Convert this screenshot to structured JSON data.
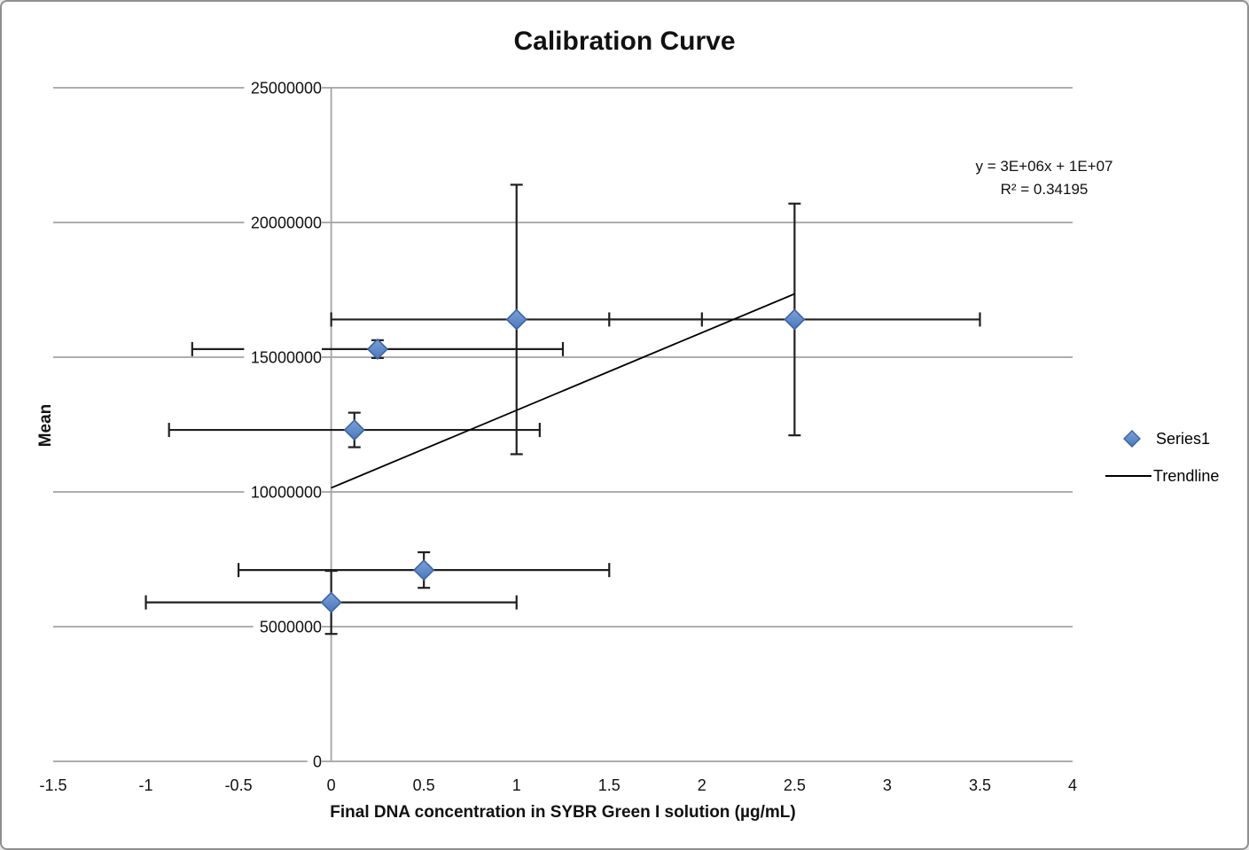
{
  "chart_data": {
    "type": "scatter",
    "title": "Calibration Curve",
    "xlabel": "Final DNA concentration in SYBR Green I solution (µg/mL)",
    "ylabel": "Mean",
    "xlim": [
      -1.5,
      4
    ],
    "ylim": [
      0,
      25000000
    ],
    "x_ticks": [
      -1.5,
      -1,
      -0.5,
      0,
      0.5,
      1,
      1.5,
      2,
      2.5,
      3,
      3.5,
      4
    ],
    "x_tick_labels": [
      "-1.5",
      "-1",
      "-0.5",
      "0",
      "0.5",
      "1",
      "1.5",
      "2",
      "2.5",
      "3",
      "3.5",
      "4"
    ],
    "y_ticks": [
      0,
      5000000,
      10000000,
      15000000,
      20000000,
      25000000
    ],
    "y_tick_labels": [
      "0",
      "5000000",
      "10000000",
      "15000000",
      "20000000",
      "25000000"
    ],
    "grid": "horizontal-major",
    "series": [
      {
        "name": "Series1",
        "type": "scatter",
        "marker": "diamond",
        "points": [
          {
            "x": 0,
            "y": 5900000,
            "x_err": 1,
            "y_err": 1170000
          },
          {
            "x": 0.125,
            "y": 12300000,
            "x_err": 1,
            "y_err": 640000
          },
          {
            "x": 0.25,
            "y": 15300000,
            "x_err": 1,
            "y_err": 330000
          },
          {
            "x": 0.5,
            "y": 7100000,
            "x_err": 1,
            "y_err": 660000
          },
          {
            "x": 1,
            "y": 16400000,
            "x_err": 1,
            "y_err": 5000000
          },
          {
            "x": 2.5,
            "y": 16400000,
            "x_err": 1,
            "y_err": 4300000
          }
        ]
      },
      {
        "name": "Trendline",
        "type": "line",
        "points": [
          {
            "x": 0,
            "y": 10150000
          },
          {
            "x": 2.5,
            "y": 17350000
          }
        ]
      }
    ],
    "annotation": {
      "equation": "y = 3E+06x + 1E+07",
      "r_squared": "R² = 0.34195"
    },
    "legend": {
      "position": "right",
      "entries": [
        "Series1",
        "Trendline"
      ]
    },
    "colors": {
      "marker_fill_top": "#7ca1d6",
      "marker_fill_bottom": "#4a77be",
      "marker_border": "#3a64a4",
      "error_bar": "#1f1f1f",
      "trendline": "#000000",
      "gridline": "#a3a3a3",
      "text": "#111111"
    }
  }
}
